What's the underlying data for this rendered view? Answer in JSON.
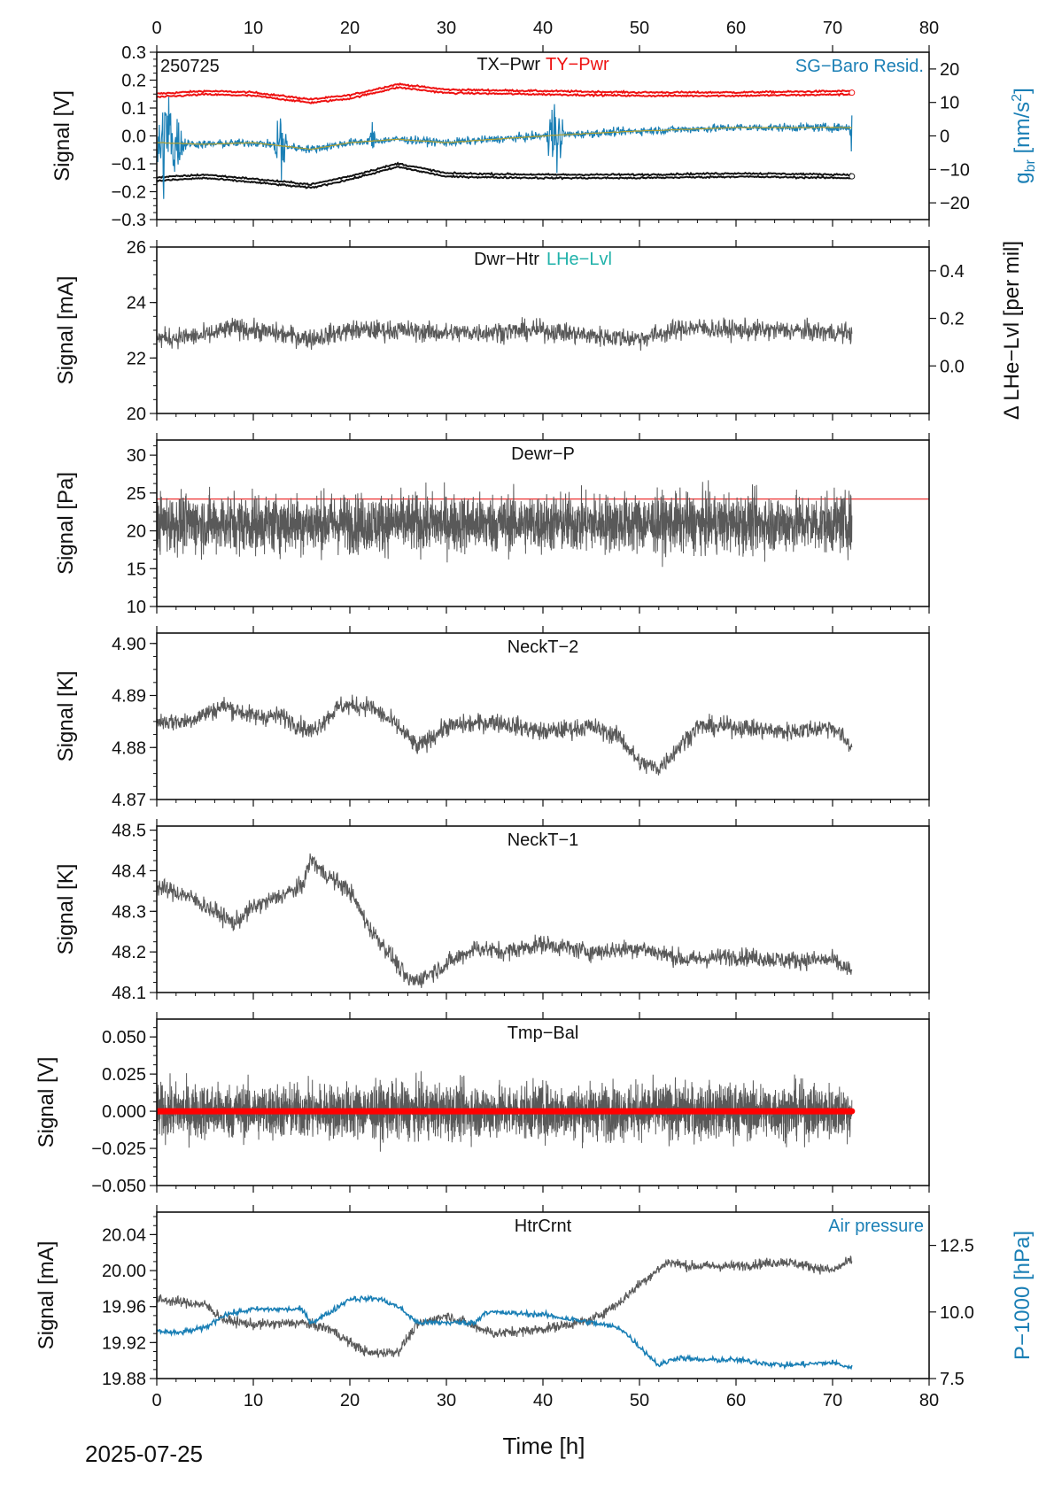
{
  "figure": {
    "date_label": "2025-07-25",
    "xlabel": "Time [h]",
    "x_ticks": [
      0,
      10,
      20,
      30,
      40,
      50,
      60,
      70,
      80
    ],
    "xlim": [
      0,
      80
    ]
  },
  "chart_data": [
    {
      "type": "line",
      "panel": "tx-ty-power",
      "code_label": "250725",
      "title_left": "TX−Pwr",
      "title_right": "TY−Pwr",
      "right_title": "SG−Baro Resid.",
      "ylabel": "Signal [V]",
      "ylabel_right_main": "g",
      "ylabel_right_sub": "br",
      "ylabel_right_unit_open": " [nm/s",
      "ylabel_right_unit_sup": "2",
      "ylabel_right_unit_close": "]",
      "ylim": [
        -0.3,
        0.3
      ],
      "yticks": [
        "−0.3",
        "−0.2",
        "−0.1",
        "0.0",
        "0.1",
        "0.2",
        "0.3"
      ],
      "ylim_right": [
        -25,
        25
      ],
      "yticks_right": [
        "20",
        "10",
        "0",
        "−10",
        "−20"
      ],
      "series": [
        {
          "name": "TY−Pwr",
          "color": "#ee1111",
          "x": [
            0,
            5,
            10,
            16,
            20,
            25,
            30,
            40,
            50,
            60,
            72
          ],
          "y": [
            0.145,
            0.155,
            0.15,
            0.125,
            0.14,
            0.18,
            0.16,
            0.155,
            0.15,
            0.15,
            0.155
          ]
        },
        {
          "name": "TX−Pwr",
          "color": "#111111",
          "x": [
            0,
            5,
            10,
            16,
            20,
            25,
            30,
            40,
            50,
            60,
            72
          ],
          "y": [
            -0.155,
            -0.145,
            -0.16,
            -0.18,
            -0.15,
            -0.105,
            -0.14,
            -0.145,
            -0.145,
            -0.14,
            -0.145
          ]
        },
        {
          "name": "SG−Baro Resid.",
          "color": "#1a7fb5",
          "x": [
            0,
            5,
            10,
            16,
            20,
            25,
            30,
            40,
            50,
            60,
            72
          ],
          "y": [
            -2,
            -2.5,
            -2,
            -4,
            -2,
            -1,
            -2,
            0,
            1.5,
            2.5,
            2.5
          ]
        }
      ]
    },
    {
      "type": "line",
      "panel": "dewar-heater",
      "title_left": "Dwr−Htr",
      "title_right": "LHe−Lvl",
      "ylabel": "Signal [mA]",
      "ylabel_right": "Δ LHe−Lvl [per mil]",
      "ylim": [
        20,
        26
      ],
      "yticks": [
        "20",
        "22",
        "24",
        "26"
      ],
      "ylim_right": [
        -0.2,
        0.5
      ],
      "yticks_right": [
        "0.0",
        "0.2",
        "0.4"
      ],
      "series": [
        {
          "color": "#595959",
          "x": [
            0,
            5,
            8,
            12,
            16,
            20,
            25,
            30,
            40,
            45,
            50,
            55,
            60,
            65,
            72
          ],
          "y": [
            22.7,
            22.8,
            23.1,
            22.9,
            22.7,
            23.0,
            23.0,
            22.9,
            23.0,
            22.8,
            22.7,
            23.1,
            23.0,
            23.0,
            22.9
          ]
        }
      ]
    },
    {
      "type": "line",
      "panel": "dewar-pressure",
      "title_left": "Dewr−P",
      "ylabel": "Signal [Pa]",
      "ylim": [
        10,
        32
      ],
      "yticks": [
        "10",
        "15",
        "20",
        "25",
        "30"
      ],
      "reference_line": 24.2,
      "series": [
        {
          "color": "#595959",
          "x": [
            0,
            72
          ],
          "y": [
            21,
            21
          ]
        }
      ]
    },
    {
      "type": "line",
      "panel": "neck-temperature-2",
      "title_left": "NeckT−2",
      "ylabel": "Signal [K]",
      "ylim": [
        4.87,
        4.902
      ],
      "yticks": [
        "4.87",
        "4.88",
        "4.89",
        "4.90"
      ],
      "series": [
        {
          "color": "#595959",
          "x": [
            0,
            3,
            7,
            10,
            13,
            16,
            19,
            22,
            25,
            27,
            30,
            35,
            40,
            45,
            48,
            50,
            52,
            54,
            56,
            60,
            65,
            70,
            72
          ],
          "y": [
            4.885,
            4.885,
            4.888,
            4.886,
            4.886,
            4.883,
            4.888,
            4.888,
            4.884,
            4.88,
            4.884,
            4.885,
            4.883,
            4.884,
            4.882,
            4.877,
            4.876,
            4.88,
            4.884,
            4.884,
            4.883,
            4.884,
            4.88
          ]
        }
      ]
    },
    {
      "type": "line",
      "panel": "neck-temperature-1",
      "title_left": "NeckT−1",
      "ylabel": "Signal [K]",
      "ylim": [
        48.1,
        48.51
      ],
      "yticks": [
        "48.1",
        "48.2",
        "48.3",
        "48.4",
        "48.5"
      ],
      "series": [
        {
          "color": "#595959",
          "x": [
            0,
            3,
            6,
            8,
            10,
            13,
            15,
            16,
            17,
            20,
            22,
            24,
            26,
            27,
            30,
            33,
            36,
            40,
            45,
            50,
            55,
            60,
            65,
            70,
            72
          ],
          "y": [
            48.36,
            48.34,
            48.3,
            48.27,
            48.31,
            48.34,
            48.36,
            48.43,
            48.4,
            48.35,
            48.26,
            48.2,
            48.13,
            48.13,
            48.17,
            48.21,
            48.2,
            48.22,
            48.2,
            48.21,
            48.18,
            48.19,
            48.18,
            48.18,
            48.15
          ]
        }
      ]
    },
    {
      "type": "line",
      "panel": "temperature-balance",
      "title_left": "Tmp−Bal",
      "ylabel": "Signal [V]",
      "ylim": [
        -0.05,
        0.062
      ],
      "yticks": [
        "−0.050",
        "−0.025",
        "0.000",
        "0.025",
        "0.050"
      ],
      "reference_line": 0.0,
      "series": [
        {
          "color": "#595959",
          "x": [
            0,
            72
          ],
          "y": [
            0.0,
            0.0
          ]
        }
      ]
    },
    {
      "type": "line",
      "panel": "heater-current",
      "title_left": "HtrCrnt",
      "right_title": "Air pressure",
      "ylabel": "Signal [mA]",
      "ylabel_right": "P−1000 [hPa]",
      "ylim": [
        19.88,
        20.065
      ],
      "yticks": [
        "19.88",
        "19.92",
        "19.96",
        "20.00",
        "20.04"
      ],
      "ylim_right": [
        7.5,
        13.75
      ],
      "yticks_right": [
        "7.5",
        "10.0",
        "12.5"
      ],
      "series": [
        {
          "name": "HtrCrnt",
          "color": "#595959",
          "x": [
            0,
            5,
            7,
            10,
            15,
            18,
            20,
            22,
            25,
            27,
            30,
            35,
            40,
            45,
            48,
            50,
            53,
            55,
            60,
            65,
            70,
            72
          ],
          "y": [
            19.968,
            19.962,
            19.945,
            19.94,
            19.942,
            19.935,
            19.92,
            19.908,
            19.91,
            19.94,
            19.95,
            19.93,
            19.935,
            19.945,
            19.965,
            19.985,
            20.01,
            20.005,
            20.005,
            20.01,
            20.0,
            20.012
          ]
        },
        {
          "name": "Air pressure",
          "color": "#1a7fb5",
          "x": [
            0,
            2,
            5,
            7,
            10,
            15,
            16,
            18,
            20,
            23,
            25,
            27,
            30,
            33,
            34,
            40,
            45,
            48,
            50,
            52,
            54,
            56,
            60,
            65,
            70,
            72
          ],
          "y": [
            9.3,
            9.2,
            9.4,
            9.9,
            10.1,
            10.1,
            9.6,
            10.0,
            10.5,
            10.5,
            10.2,
            9.6,
            9.6,
            9.6,
            10.0,
            9.9,
            9.6,
            9.4,
            8.7,
            8.0,
            8.3,
            8.2,
            8.2,
            8.0,
            8.1,
            7.9
          ]
        }
      ]
    }
  ]
}
